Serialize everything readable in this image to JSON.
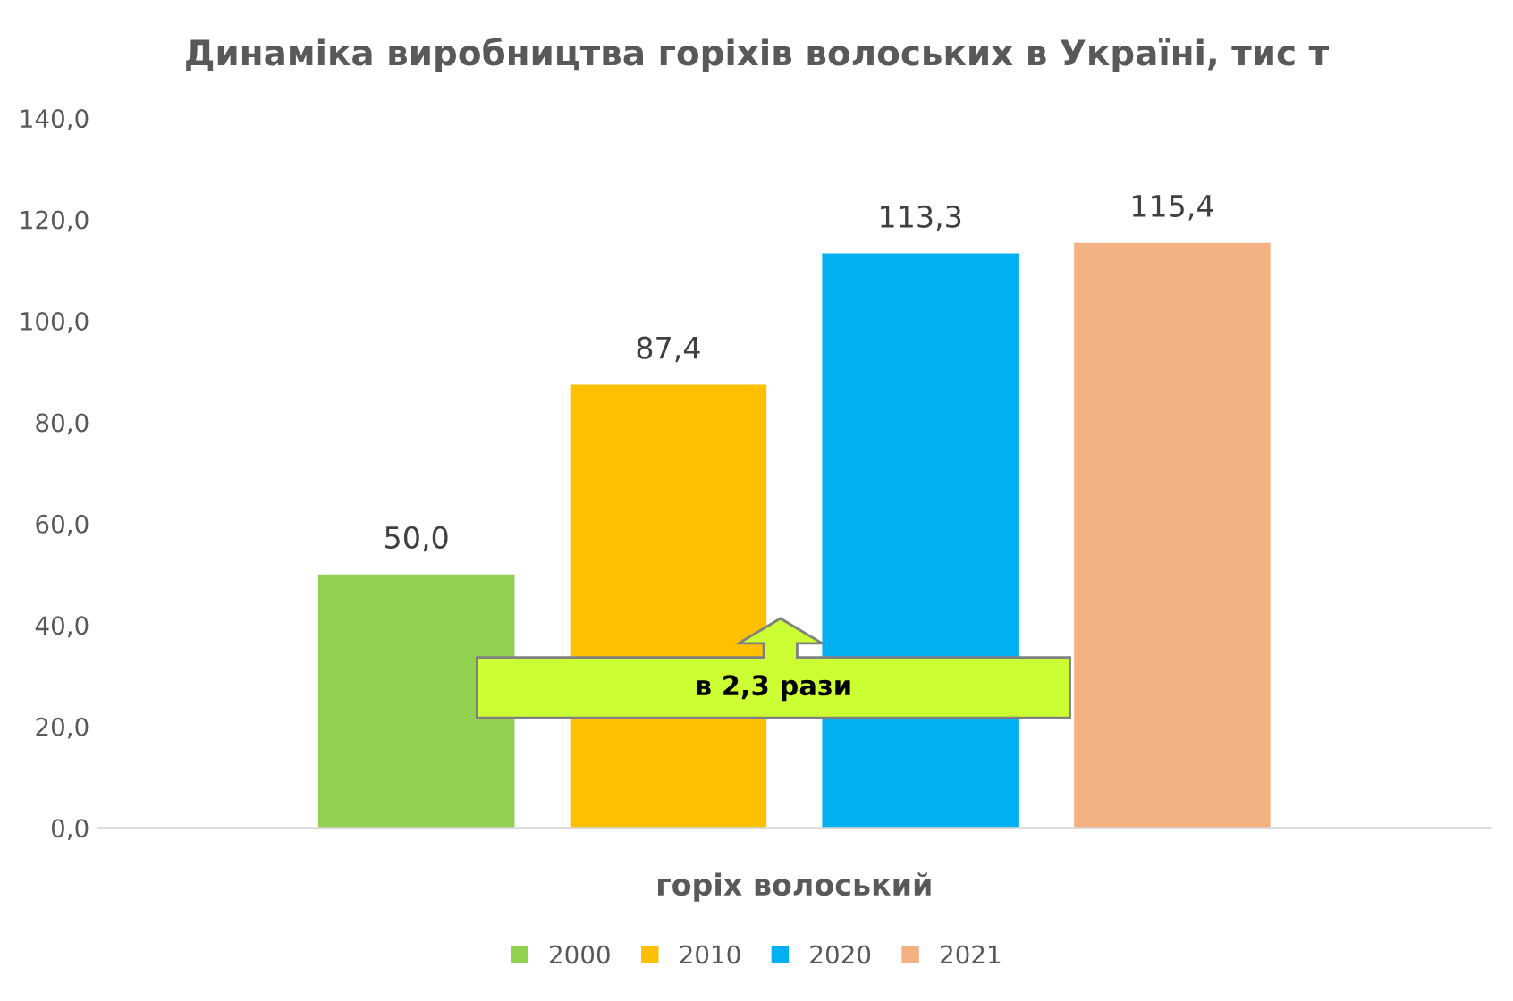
{
  "chart_data": {
    "type": "bar",
    "title": "Динаміка виробництва горіхів волоських в Україні, тис т",
    "categories": [
      "горіх волоський"
    ],
    "series": [
      {
        "name": "2000",
        "color": "#92d050",
        "values": [
          50.0
        ],
        "value_labels": [
          "50,0"
        ]
      },
      {
        "name": "2010",
        "color": "#ffc000",
        "values": [
          87.4
        ],
        "value_labels": [
          "87,4"
        ]
      },
      {
        "name": "2020",
        "color": "#00b0f0",
        "values": [
          113.3
        ],
        "value_labels": [
          "113,3"
        ]
      },
      {
        "name": "2021",
        "color": "#f4b183",
        "values": [
          115.4
        ],
        "value_labels": [
          "115,4"
        ]
      }
    ],
    "ylim": [
      0,
      140
    ],
    "yticks": [
      {
        "value": 0,
        "label": "0,0"
      },
      {
        "value": 20,
        "label": "20,0"
      },
      {
        "value": 40,
        "label": "40,0"
      },
      {
        "value": 60,
        "label": "60,0"
      },
      {
        "value": 80,
        "label": "80,0"
      },
      {
        "value": 100,
        "label": "100,0"
      },
      {
        "value": 120,
        "label": "120,0"
      },
      {
        "value": 140,
        "label": "140,0"
      }
    ],
    "grid": false,
    "legend": "bottom",
    "annotations": [
      "в 2,3 рази"
    ]
  }
}
